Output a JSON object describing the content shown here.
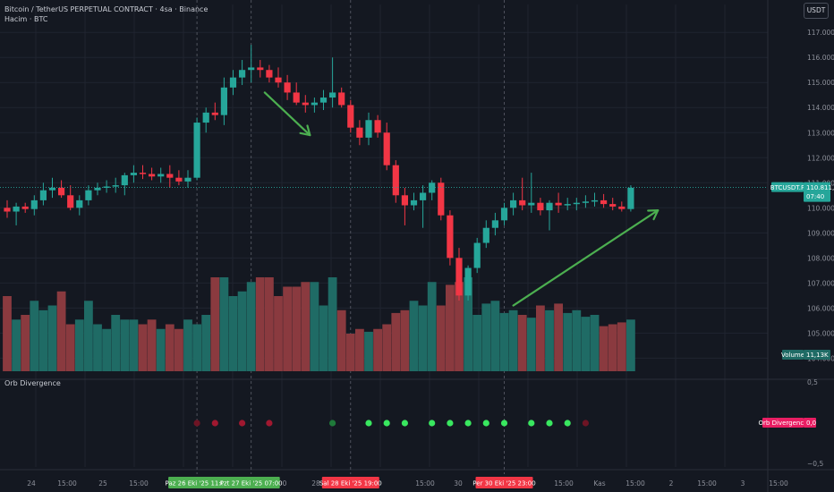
{
  "header": {
    "title": "Bitcoin / TetherUS PERPETUAL CONTRACT · 4sa · Binance",
    "volume_title": "Hacim · BTC",
    "currency": "USDT"
  },
  "colors": {
    "background": "#141821",
    "up": "#26a69a",
    "down": "#f23645",
    "vol_up": "#1f6b65",
    "vol_down": "#8a3a3f",
    "arrow": "#4caf50",
    "grid": "#1f2430",
    "dot_green": "#39e75f",
    "dot_dark_green": "#1f7a3a",
    "dot_red": "#a01830"
  },
  "chart_data": {
    "type": "candlestick",
    "y_ticks": [
      "117.000,0",
      "116.000,0",
      "115.000,0",
      "114.000,0",
      "113.000,0",
      "112.000,0",
      "111.000,0",
      "110.000,0",
      "109.000,0",
      "108.000,0",
      "107.000,0",
      "106.000,0",
      "105.000,0",
      "104.000,0"
    ],
    "y_range": [
      103300,
      117400
    ],
    "x_labels": [
      "24",
      "15:00",
      "25",
      "15:00",
      "0",
      "28",
      "15:00",
      "30",
      "15:00",
      "Kas",
      "15:00",
      "2",
      "15:00",
      "3",
      "15:00"
    ],
    "candles": [
      {
        "o": 110000,
        "h": 110300,
        "l": 109600,
        "c": 109850
      },
      {
        "o": 109850,
        "h": 110200,
        "l": 109300,
        "c": 110050
      },
      {
        "o": 110050,
        "h": 110200,
        "l": 109800,
        "c": 109950
      },
      {
        "o": 109950,
        "h": 110500,
        "l": 109700,
        "c": 110300
      },
      {
        "o": 110300,
        "h": 111000,
        "l": 110100,
        "c": 110700
      },
      {
        "o": 110700,
        "h": 111200,
        "l": 110400,
        "c": 110800
      },
      {
        "o": 110800,
        "h": 111100,
        "l": 110400,
        "c": 110500
      },
      {
        "o": 110500,
        "h": 110900,
        "l": 109900,
        "c": 110000
      },
      {
        "o": 110000,
        "h": 110500,
        "l": 109700,
        "c": 110300
      },
      {
        "o": 110300,
        "h": 110900,
        "l": 110100,
        "c": 110700
      },
      {
        "o": 110700,
        "h": 111000,
        "l": 110500,
        "c": 110800
      },
      {
        "o": 110800,
        "h": 111100,
        "l": 110600,
        "c": 110850
      },
      {
        "o": 110850,
        "h": 111200,
        "l": 110600,
        "c": 110900
      },
      {
        "o": 110900,
        "h": 111400,
        "l": 110500,
        "c": 111300
      },
      {
        "o": 111300,
        "h": 111700,
        "l": 111000,
        "c": 111400
      },
      {
        "o": 111400,
        "h": 111700,
        "l": 111150,
        "c": 111350
      },
      {
        "o": 111350,
        "h": 111600,
        "l": 111100,
        "c": 111250
      },
      {
        "o": 111250,
        "h": 111600,
        "l": 111000,
        "c": 111350
      },
      {
        "o": 111350,
        "h": 111700,
        "l": 110800,
        "c": 111200
      },
      {
        "o": 111200,
        "h": 111500,
        "l": 110900,
        "c": 111050
      },
      {
        "o": 111050,
        "h": 111500,
        "l": 110800,
        "c": 111200
      },
      {
        "o": 111200,
        "h": 113600,
        "l": 111100,
        "c": 113400
      },
      {
        "o": 113400,
        "h": 114000,
        "l": 113000,
        "c": 113800
      },
      {
        "o": 113800,
        "h": 114200,
        "l": 113500,
        "c": 113700
      },
      {
        "o": 113700,
        "h": 115200,
        "l": 113300,
        "c": 114800
      },
      {
        "o": 114800,
        "h": 115500,
        "l": 114500,
        "c": 115200
      },
      {
        "o": 115200,
        "h": 115900,
        "l": 114900,
        "c": 115500
      },
      {
        "o": 115500,
        "h": 116500,
        "l": 115000,
        "c": 115600
      },
      {
        "o": 115600,
        "h": 115900,
        "l": 115200,
        "c": 115500
      },
      {
        "o": 115500,
        "h": 115700,
        "l": 115000,
        "c": 115200
      },
      {
        "o": 115200,
        "h": 115600,
        "l": 114800,
        "c": 115000
      },
      {
        "o": 115000,
        "h": 115300,
        "l": 114300,
        "c": 114600
      },
      {
        "o": 114600,
        "h": 115000,
        "l": 114100,
        "c": 114200
      },
      {
        "o": 114200,
        "h": 114500,
        "l": 113800,
        "c": 114100
      },
      {
        "o": 114100,
        "h": 114400,
        "l": 113800,
        "c": 114200
      },
      {
        "o": 114200,
        "h": 114700,
        "l": 113900,
        "c": 114400
      },
      {
        "o": 114400,
        "h": 116000,
        "l": 114000,
        "c": 114600
      },
      {
        "o": 114600,
        "h": 114800,
        "l": 114000,
        "c": 114100
      },
      {
        "o": 114100,
        "h": 114300,
        "l": 113000,
        "c": 113200
      },
      {
        "o": 113200,
        "h": 113500,
        "l": 112500,
        "c": 112800
      },
      {
        "o": 112800,
        "h": 113800,
        "l": 112500,
        "c": 113500
      },
      {
        "o": 113500,
        "h": 113700,
        "l": 112800,
        "c": 113000
      },
      {
        "o": 113000,
        "h": 113400,
        "l": 111500,
        "c": 111700
      },
      {
        "o": 111700,
        "h": 111900,
        "l": 110200,
        "c": 110500
      },
      {
        "o": 110500,
        "h": 110800,
        "l": 109300,
        "c": 110100
      },
      {
        "o": 110100,
        "h": 110600,
        "l": 109900,
        "c": 110300
      },
      {
        "o": 110300,
        "h": 110900,
        "l": 109200,
        "c": 110600
      },
      {
        "o": 110600,
        "h": 111100,
        "l": 110300,
        "c": 111000
      },
      {
        "o": 111000,
        "h": 111200,
        "l": 109500,
        "c": 109700
      },
      {
        "o": 109700,
        "h": 109900,
        "l": 107700,
        "c": 108000
      },
      {
        "o": 108000,
        "h": 108400,
        "l": 106300,
        "c": 106500
      },
      {
        "o": 106500,
        "h": 107700,
        "l": 106300,
        "c": 107600
      },
      {
        "o": 107600,
        "h": 108800,
        "l": 107400,
        "c": 108600
      },
      {
        "o": 108600,
        "h": 109500,
        "l": 108400,
        "c": 109200
      },
      {
        "o": 109200,
        "h": 109800,
        "l": 108900,
        "c": 109500
      },
      {
        "o": 109500,
        "h": 110200,
        "l": 109300,
        "c": 110000
      },
      {
        "o": 110000,
        "h": 110600,
        "l": 109700,
        "c": 110300
      },
      {
        "o": 110300,
        "h": 111200,
        "l": 109900,
        "c": 110100
      },
      {
        "o": 110100,
        "h": 111400,
        "l": 109800,
        "c": 110200
      },
      {
        "o": 110200,
        "h": 110400,
        "l": 109700,
        "c": 109900
      },
      {
        "o": 109900,
        "h": 110300,
        "l": 109100,
        "c": 110200
      },
      {
        "o": 110200,
        "h": 110600,
        "l": 109800,
        "c": 110100
      },
      {
        "o": 110100,
        "h": 110400,
        "l": 109900,
        "c": 110150
      },
      {
        "o": 110150,
        "h": 110400,
        "l": 109900,
        "c": 110200
      },
      {
        "o": 110200,
        "h": 110500,
        "l": 110000,
        "c": 110250
      },
      {
        "o": 110250,
        "h": 110600,
        "l": 110050,
        "c": 110300
      },
      {
        "o": 110300,
        "h": 110550,
        "l": 110000,
        "c": 110150
      },
      {
        "o": 110150,
        "h": 110400,
        "l": 109900,
        "c": 110050
      },
      {
        "o": 110050,
        "h": 110250,
        "l": 109850,
        "c": 109950
      },
      {
        "o": 109950,
        "h": 110900,
        "l": 109850,
        "c": 110800
      }
    ],
    "volume": [
      80,
      55,
      60,
      75,
      65,
      70,
      85,
      50,
      55,
      75,
      50,
      45,
      60,
      55,
      55,
      50,
      55,
      45,
      50,
      45,
      55,
      50,
      60,
      100,
      100,
      80,
      85,
      95,
      100,
      100,
      80,
      90,
      90,
      95,
      95,
      70,
      100,
      65,
      40,
      45,
      42,
      45,
      50,
      62,
      65,
      75,
      70,
      95,
      70,
      92,
      95,
      100,
      60,
      72,
      75,
      62,
      65,
      60,
      57,
      70,
      65,
      72,
      62,
      65,
      58,
      60,
      48,
      50,
      52,
      55
    ],
    "vol_max": 100,
    "volume_label": "Volume",
    "volume_value": "11,13K",
    "price_label": "BTCUSDT.P",
    "price_value": "110.811,6",
    "price_timer": "07:40",
    "current_price": 110811.6,
    "indicator": {
      "name": "Orb Divergence",
      "value": "0,0",
      "ticks": [
        "0,5",
        "−0,5"
      ],
      "dots": [
        {
          "i": 21,
          "color": "red_dim"
        },
        {
          "i": 23,
          "color": "red"
        },
        {
          "i": 26,
          "color": "red"
        },
        {
          "i": 29,
          "color": "red"
        },
        {
          "i": 36,
          "color": "dark_green"
        },
        {
          "i": 40,
          "color": "green"
        },
        {
          "i": 42,
          "color": "green"
        },
        {
          "i": 44,
          "color": "green"
        },
        {
          "i": 47,
          "color": "green"
        },
        {
          "i": 49,
          "color": "green"
        },
        {
          "i": 51,
          "color": "green"
        },
        {
          "i": 53,
          "color": "green"
        },
        {
          "i": 55,
          "color": "green"
        },
        {
          "i": 58,
          "color": "green"
        },
        {
          "i": 60,
          "color": "green"
        },
        {
          "i": 62,
          "color": "green"
        },
        {
          "i": 64,
          "color": "red_dim"
        }
      ]
    },
    "date_tags": [
      {
        "text": "Paz 26 Eki '25   11:00",
        "color": "green",
        "i": 21
      },
      {
        "text": "Pzt 27 Eki '25   07:00",
        "color": "green",
        "i": 27
      },
      {
        "text": "Sal 28 Eki '25   19:00",
        "color": "red",
        "i": 38
      },
      {
        "text": "Per 30 Eki '25   23:00",
        "color": "red",
        "i": 55
      }
    ],
    "arrows": [
      {
        "from": [
          28.5,
          114600
        ],
        "to": [
          33.5,
          112900
        ]
      },
      {
        "from": [
          56,
          106100
        ],
        "to": [
          72,
          109900
        ]
      }
    ]
  }
}
